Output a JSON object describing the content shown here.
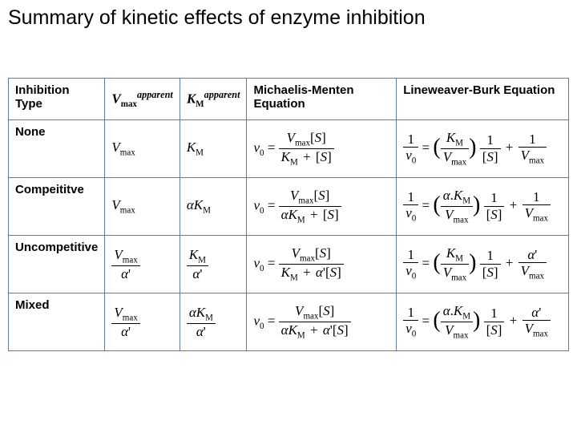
{
  "title": "Summary of kinetic effects of enzyme inhibition",
  "headers": {
    "c1": "Inhibition Type",
    "c2_html": "V<span class='sub'>max</span><span class='sup'>apparent</span>",
    "c3_html": "K<span class='sub'>M</span><span class='sup'>apparent</span>",
    "c4": "Michaelis-Menten Equation",
    "c5": "Lineweaver-Burk Equation"
  },
  "rows": {
    "r1": "None",
    "r2": "Compeititve",
    "r3": "Uncompetitive",
    "r4": "Mixed"
  },
  "style": {
    "border_color": "#5b7bb8",
    "background": "#ffffff",
    "text_color": "#000000",
    "title_fontsize": 25,
    "header_fontsize": 15,
    "equation_font": "Times New Roman italic"
  },
  "equations_text": {
    "none": {
      "vmax": "V_max",
      "km": "K_M",
      "mm": "v0 = Vmax[S] / (KM + [S])",
      "lb": "1/v0 = (KM/Vmax)(1/[S]) + 1/Vmax"
    },
    "comp": {
      "vmax": "V_max",
      "km": "αK_M",
      "mm": "v0 = Vmax[S] / (αKM + [S])",
      "lb": "1/v0 = (α.KM/Vmax)(1/[S]) + 1/Vmax"
    },
    "uncomp": {
      "vmax": "V_max/α'",
      "km": "K_M/α'",
      "mm": "v0 = Vmax[S] / (KM + α'[S])",
      "lb": "1/v0 = (KM/Vmax)(1/[S]) + α'/Vmax"
    },
    "mixed": {
      "vmax": "V_max/α'",
      "km": "αK_M/α'",
      "mm": "v0 = Vmax[S] / (αKM + α'[S])",
      "lb": "1/v0 = (α.KM/Vmax)(1/[S]) + α'/Vmax"
    }
  }
}
